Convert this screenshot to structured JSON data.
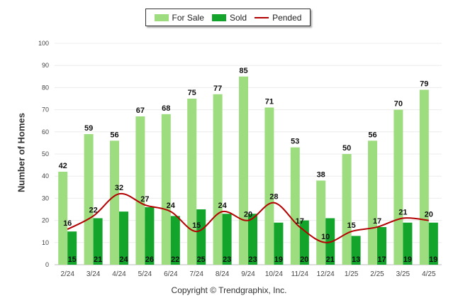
{
  "chart_data": {
    "type": "bar",
    "categories": [
      "2/24",
      "3/24",
      "4/24",
      "5/24",
      "6/24",
      "7/24",
      "8/24",
      "9/24",
      "10/24",
      "11/24",
      "12/24",
      "1/25",
      "2/25",
      "3/25",
      "4/25"
    ],
    "series": [
      {
        "name": "For Sale",
        "type": "bar",
        "color": "#9ddd7f",
        "values": [
          42,
          59,
          56,
          67,
          68,
          75,
          77,
          85,
          71,
          53,
          38,
          50,
          56,
          70,
          79
        ]
      },
      {
        "name": "Sold",
        "type": "bar",
        "color": "#13a52b",
        "values": [
          15,
          21,
          24,
          26,
          22,
          25,
          23,
          23,
          19,
          20,
          21,
          13,
          17,
          19,
          19
        ]
      },
      {
        "name": "Pended",
        "type": "line",
        "color": "#b30000",
        "values": [
          16,
          22,
          32,
          27,
          24,
          15,
          24,
          20,
          28,
          17,
          10,
          15,
          17,
          21,
          20
        ]
      }
    ],
    "ylabel": "Number of Homes",
    "ylim": [
      0,
      100
    ],
    "yticks": [
      0,
      10,
      20,
      30,
      40,
      50,
      60,
      70,
      80,
      90,
      100
    ],
    "grid": true,
    "legend_position": "top-center"
  },
  "footer": "Copyright © Trendgraphix, Inc."
}
